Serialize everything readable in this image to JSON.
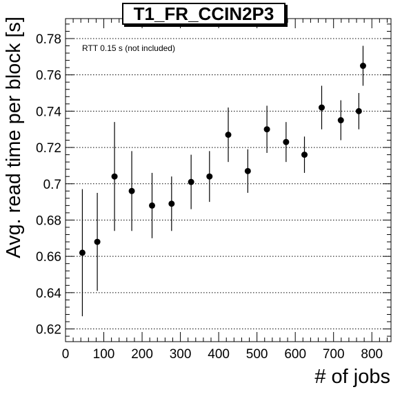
{
  "chart_data": {
    "type": "scatter",
    "title": "T1_FR_CCIN2P3",
    "xlabel": "# of jobs",
    "ylabel": "Avg. read time per block [s]",
    "annotation": "RTT 0.15 s (not included)",
    "xlim": [
      0,
      850
    ],
    "ylim": [
      0.613,
      0.791
    ],
    "x_ticks": [
      0,
      100,
      200,
      300,
      400,
      500,
      600,
      700,
      800
    ],
    "y_ticks": [
      0.62,
      0.64,
      0.66,
      0.68,
      0.7,
      0.72,
      0.74,
      0.76,
      0.78
    ],
    "y_tick_labels": [
      "0.62",
      "0.64",
      "0.66",
      "0.68",
      "0.7",
      "0.72",
      "0.74",
      "0.76",
      "0.78"
    ],
    "grid": "horizontal-dotted",
    "series": [
      {
        "points": [
          {
            "x": 44,
            "y": 0.662,
            "err": 0.035
          },
          {
            "x": 83,
            "y": 0.668,
            "err": 0.027
          },
          {
            "x": 128,
            "y": 0.704,
            "err": 0.03
          },
          {
            "x": 173,
            "y": 0.696,
            "err": 0.022
          },
          {
            "x": 226,
            "y": 0.688,
            "err": 0.018
          },
          {
            "x": 277,
            "y": 0.689,
            "err": 0.015
          },
          {
            "x": 328,
            "y": 0.701,
            "err": 0.015
          },
          {
            "x": 376,
            "y": 0.704,
            "err": 0.014
          },
          {
            "x": 425,
            "y": 0.727,
            "err": 0.015
          },
          {
            "x": 476,
            "y": 0.707,
            "err": 0.012
          },
          {
            "x": 526,
            "y": 0.73,
            "err": 0.013
          },
          {
            "x": 576,
            "y": 0.723,
            "err": 0.011
          },
          {
            "x": 624,
            "y": 0.716,
            "err": 0.01
          },
          {
            "x": 669,
            "y": 0.742,
            "err": 0.012
          },
          {
            "x": 719,
            "y": 0.735,
            "err": 0.011
          },
          {
            "x": 766,
            "y": 0.74,
            "err": 0.01
          },
          {
            "x": 777,
            "y": 0.765,
            "err": 0.011
          }
        ]
      }
    ]
  }
}
